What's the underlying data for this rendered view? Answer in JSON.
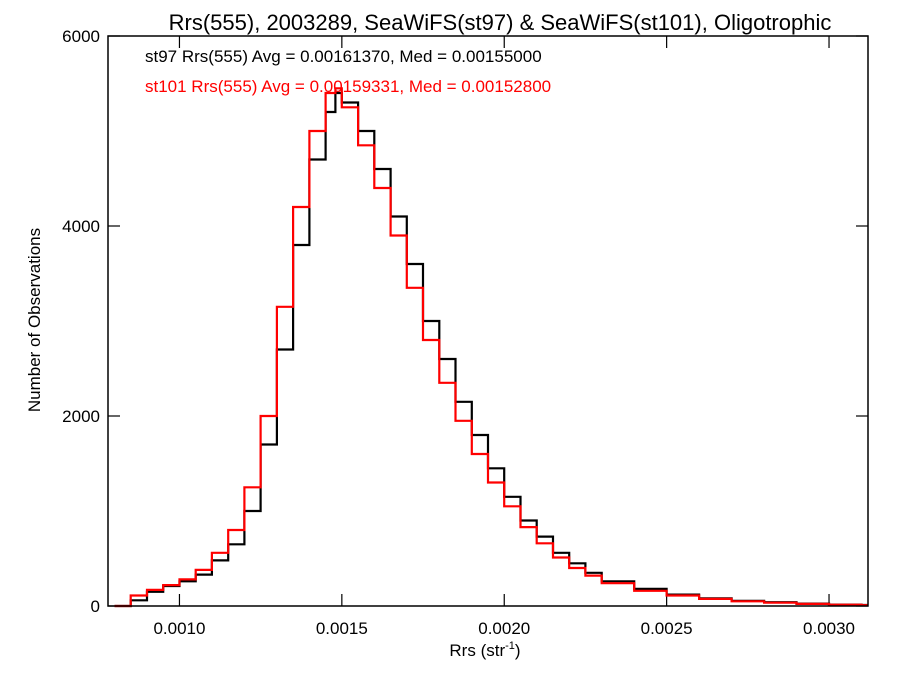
{
  "chart_data": {
    "type": "line",
    "title": "Rrs(555), 2003289, SeaWiFS(st97) & SeaWiFS(st101), Oligotrophic",
    "xlabel": "Rrs (str",
    "xlabel_sup": "-1",
    "xlabel_close": ")",
    "ylabel": "Number of Observations",
    "xlim": [
      0.00078,
      0.00312
    ],
    "ylim": [
      0,
      6000
    ],
    "grid": false,
    "xticks": [
      {
        "value": 0.001,
        "label": "0.0010"
      },
      {
        "value": 0.0015,
        "label": "0.0015"
      },
      {
        "value": 0.002,
        "label": "0.0020"
      },
      {
        "value": 0.0025,
        "label": "0.0025"
      },
      {
        "value": 0.003,
        "label": "0.0030"
      }
    ],
    "yticks": [
      {
        "value": 0,
        "label": "0"
      },
      {
        "value": 2000,
        "label": "2000"
      },
      {
        "value": 4000,
        "label": "4000"
      },
      {
        "value": 6000,
        "label": "6000"
      }
    ],
    "annotations": [
      {
        "text": "st97 Rrs(555) Avg = 0.00161370, Med = 0.00155000",
        "color": "#000000"
      },
      {
        "text": "st101 Rrs(555) Avg = 0.00159331, Med = 0.00152800",
        "color": "#ff0000"
      }
    ],
    "series": [
      {
        "color": "#000000",
        "x": [
          0.0008,
          0.00085,
          0.0009,
          0.00095,
          0.001,
          0.00105,
          0.0011,
          0.00115,
          0.0012,
          0.00125,
          0.0013,
          0.00135,
          0.0014,
          0.00145,
          0.00148,
          0.0015,
          0.00155,
          0.0016,
          0.00165,
          0.0017,
          0.00175,
          0.0018,
          0.00185,
          0.0019,
          0.00195,
          0.002,
          0.00205,
          0.0021,
          0.00215,
          0.0022,
          0.00225,
          0.0023,
          0.0024,
          0.0025,
          0.0026,
          0.0027,
          0.0028,
          0.0029,
          0.003,
          0.0031
        ],
        "y": [
          0,
          60,
          150,
          210,
          260,
          330,
          480,
          650,
          1000,
          1700,
          2700,
          3800,
          4700,
          5200,
          5400,
          5300,
          5000,
          4600,
          4100,
          3600,
          3000,
          2600,
          2150,
          1800,
          1450,
          1150,
          900,
          730,
          560,
          450,
          350,
          260,
          180,
          120,
          80,
          55,
          40,
          25,
          15,
          10
        ]
      },
      {
        "color": "#ff0000",
        "x": [
          0.0008,
          0.00085,
          0.0009,
          0.00095,
          0.001,
          0.00105,
          0.0011,
          0.00115,
          0.0012,
          0.00125,
          0.0013,
          0.00135,
          0.0014,
          0.00145,
          0.00148,
          0.0015,
          0.00155,
          0.0016,
          0.00165,
          0.0017,
          0.00175,
          0.0018,
          0.00185,
          0.0019,
          0.00195,
          0.002,
          0.00205,
          0.0021,
          0.00215,
          0.0022,
          0.00225,
          0.0023,
          0.0024,
          0.0025,
          0.0026,
          0.0027,
          0.0028,
          0.0029,
          0.003,
          0.0031
        ],
        "y": [
          0,
          110,
          170,
          220,
          280,
          380,
          560,
          800,
          1250,
          2000,
          3150,
          4200,
          5000,
          5400,
          5450,
          5250,
          4850,
          4400,
          3900,
          3350,
          2800,
          2350,
          1950,
          1600,
          1300,
          1050,
          830,
          660,
          510,
          400,
          320,
          240,
          160,
          110,
          75,
          50,
          35,
          22,
          14,
          8
        ]
      }
    ]
  }
}
